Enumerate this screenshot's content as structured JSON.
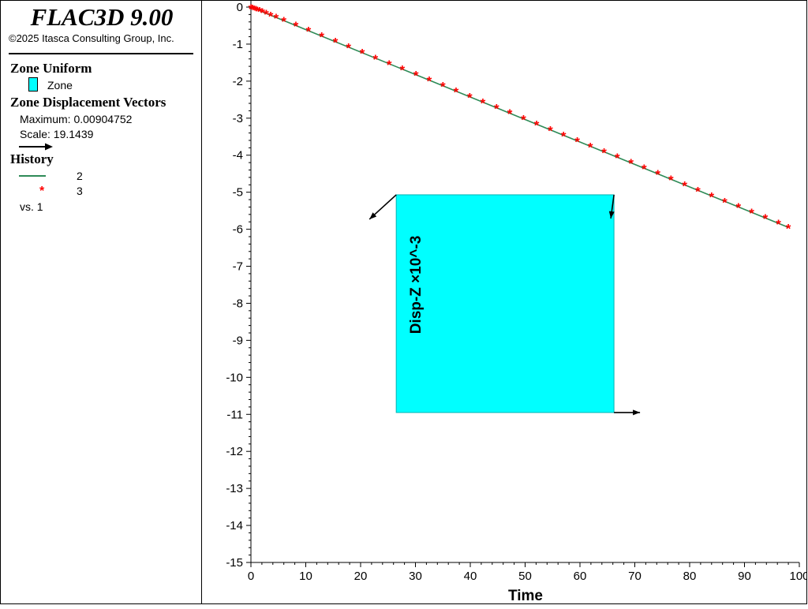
{
  "app": {
    "title": "FLAC3D 9.00",
    "copyright": "©2025 Itasca Consulting Group, Inc."
  },
  "legend": {
    "zone_uniform": {
      "title": "Zone Uniform",
      "item_label": "Zone",
      "color": "#00ffff"
    },
    "displacement_vectors": {
      "title": "Zone Displacement Vectors",
      "maximum": "Maximum: 0.00904752",
      "scale": "Scale: 19.1439"
    },
    "history": {
      "title": "History",
      "line_label": "2",
      "marker_label": "3",
      "vs": "vs. 1"
    }
  },
  "chart_data": {
    "type": "line",
    "xlabel": "Time",
    "ylabel": "Disp-Z ×10^-3",
    "xlim": [
      0,
      100
    ],
    "ylim": [
      -15,
      0
    ],
    "x_ticks": [
      0,
      10,
      20,
      30,
      40,
      50,
      60,
      70,
      80,
      90,
      100
    ],
    "y_ticks": [
      0,
      -1,
      -2,
      -3,
      -4,
      -5,
      -6,
      -7,
      -8,
      -9,
      -10,
      -11,
      -12,
      -13,
      -14,
      -15
    ],
    "series": [
      {
        "name": "2",
        "style": "line",
        "color": "#2e8b57",
        "x": [
          0,
          98
        ],
        "y": [
          0,
          -5.95
        ]
      },
      {
        "name": "3",
        "style": "marker",
        "color": "#ff0000",
        "x": [
          0,
          0.3,
          0.6,
          0.9,
          1.2,
          1.6,
          2.1,
          2.8,
          3.6,
          4.6,
          6,
          8.2,
          10.5,
          12.9,
          15.4,
          17.8,
          20.3,
          22.7,
          25.2,
          27.6,
          30.1,
          32.5,
          35,
          37.4,
          39.9,
          42.3,
          44.8,
          47.2,
          49.7,
          52.1,
          54.6,
          57,
          59.5,
          61.9,
          64.4,
          66.8,
          69.3,
          71.7,
          74.2,
          76.6,
          79.1,
          81.5,
          84,
          86.4,
          88.9,
          91.3,
          93.8,
          96.2,
          98
        ],
        "y": [
          -0.02,
          -0.03,
          -0.05,
          -0.06,
          -0.08,
          -0.1,
          -0.13,
          -0.17,
          -0.22,
          -0.28,
          -0.36,
          -0.49,
          -0.63,
          -0.78,
          -0.93,
          -1.08,
          -1.23,
          -1.38,
          -1.53,
          -1.67,
          -1.82,
          -1.97,
          -2.12,
          -2.27,
          -2.42,
          -2.57,
          -2.72,
          -2.86,
          -3.01,
          -3.16,
          -3.31,
          -3.46,
          -3.61,
          -3.76,
          -3.91,
          -4.05,
          -4.2,
          -4.35,
          -4.5,
          -4.65,
          -4.8,
          -4.95,
          -5.1,
          -5.25,
          -5.39,
          -5.54,
          -5.69,
          -5.84,
          -5.95
        ]
      }
    ],
    "zone_box": {
      "x_range": [
        26.5,
        66.2
      ],
      "y_range": [
        -5.07,
        -10.95
      ],
      "color": "#00ffff"
    }
  }
}
